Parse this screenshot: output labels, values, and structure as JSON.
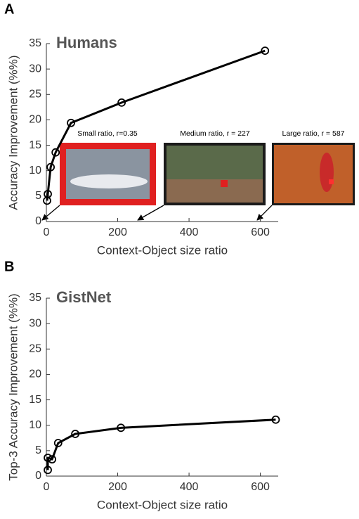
{
  "chart_data": [
    {
      "type": "line",
      "panel": "A",
      "title": "Humans",
      "xlabel": "Context-Object size ratio",
      "ylabel": "Accuracy Improvement (%%)",
      "x": [
        2,
        4,
        12,
        26,
        69,
        211,
        613
      ],
      "values": [
        4.1,
        5.4,
        10.7,
        13.6,
        19.4,
        23.4,
        33.6
      ],
      "color": "#000000",
      "xlim": [
        0,
        650
      ],
      "ylim": [
        0,
        35
      ],
      "xticks": [
        0,
        200,
        400,
        600
      ],
      "yticks": [
        0,
        5,
        10,
        15,
        20,
        25,
        30,
        35
      ],
      "annotations": [
        "Small ratio, r=0.35",
        "Medium ratio, r = 227",
        "Large ratio, r = 587"
      ]
    },
    {
      "type": "line",
      "panel": "B",
      "title": "GistNet",
      "xlabel": "Context-Object size ratio",
      "ylabel": "Top-3 Accuracy Improvement (%%)",
      "x": [
        4,
        4,
        16,
        33,
        81,
        209,
        643
      ],
      "values": [
        1.2,
        3.6,
        3.3,
        6.5,
        8.3,
        9.5,
        11.1
      ],
      "color": "#000000",
      "xlim": [
        0,
        650
      ],
      "ylim": [
        0,
        35
      ],
      "xticks": [
        0,
        200,
        400,
        600
      ],
      "yticks": [
        0,
        5,
        10,
        15,
        20,
        25,
        30,
        35
      ]
    }
  ]
}
